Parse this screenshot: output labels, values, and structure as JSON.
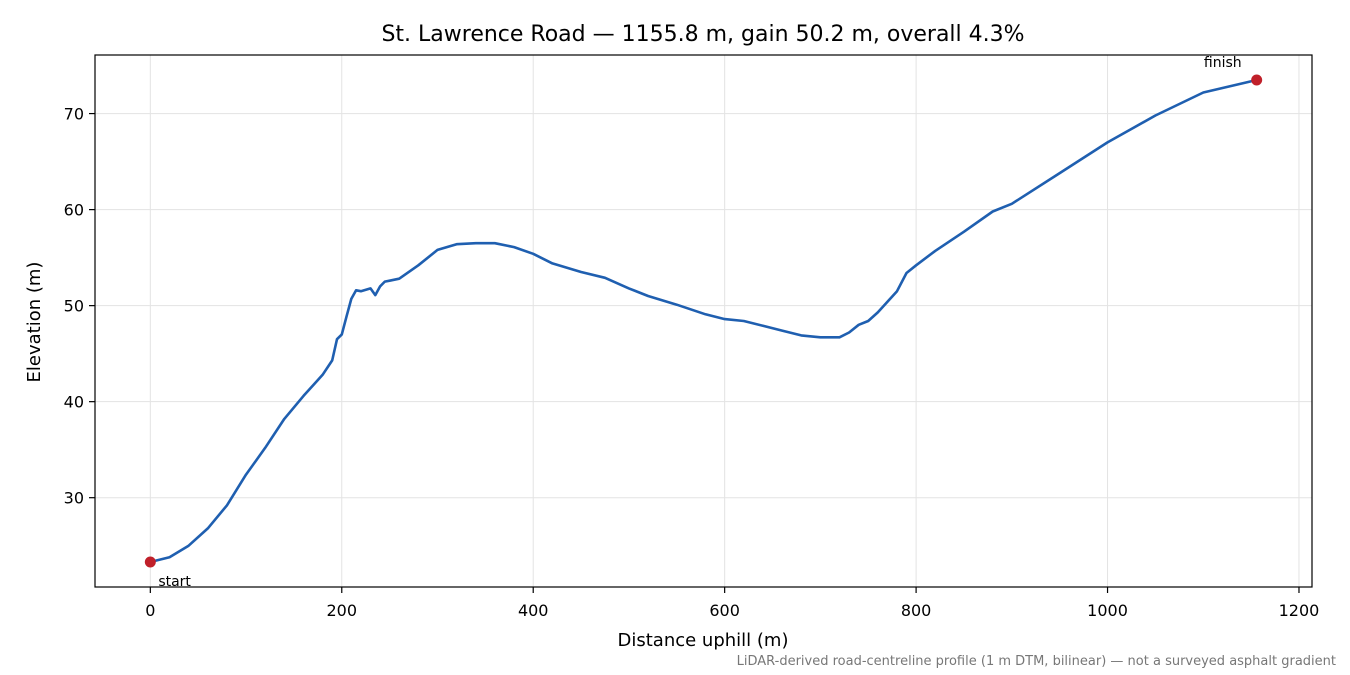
{
  "chart_data": {
    "type": "line",
    "title": "St. Lawrence Road — 1155.8 m, gain 50.2 m, overall 4.3%",
    "xlabel": "Distance uphill (m)",
    "ylabel": "Elevation (m)",
    "xlim": [
      -57.8,
      1213.6
    ],
    "ylim": [
      20.7,
      76.1
    ],
    "xticks": [
      0,
      200,
      400,
      600,
      800,
      1000,
      1200
    ],
    "yticks": [
      30,
      40,
      50,
      60,
      70
    ],
    "grid": true,
    "note": "LiDAR-derived road-centreline profile (1 m DTM, bilinear) — not a surveyed asphalt gradient",
    "series": [
      {
        "color": "#1f5fb0",
        "x": [
          0,
          20,
          40,
          60,
          80,
          100,
          110,
          120,
          140,
          160,
          180,
          190,
          195,
          200,
          205,
          210,
          215,
          220,
          230,
          235,
          240,
          245,
          250,
          260,
          280,
          300,
          320,
          340,
          360,
          380,
          400,
          420,
          450,
          475,
          500,
          520,
          550,
          580,
          600,
          620,
          640,
          660,
          680,
          700,
          720,
          730,
          740,
          750,
          760,
          780,
          790,
          800,
          820,
          850,
          880,
          900,
          950,
          1000,
          1050,
          1100,
          1155.8
        ],
        "y": [
          23.3,
          23.8,
          25.0,
          26.8,
          29.2,
          32.4,
          33.8,
          35.2,
          38.2,
          40.6,
          42.8,
          44.3,
          46.5,
          47.0,
          48.9,
          50.7,
          51.6,
          51.5,
          51.8,
          51.1,
          52.0,
          52.5,
          52.6,
          52.8,
          54.2,
          55.8,
          56.4,
          56.5,
          56.5,
          56.1,
          55.4,
          54.4,
          53.5,
          52.9,
          51.8,
          51.0,
          50.1,
          49.1,
          48.6,
          48.4,
          47.9,
          47.4,
          46.9,
          46.7,
          46.7,
          47.2,
          48.0,
          48.4,
          49.3,
          51.5,
          53.4,
          54.2,
          55.7,
          57.7,
          59.8,
          60.6,
          63.8,
          67.0,
          69.8,
          72.2,
          73.5
        ]
      }
    ],
    "points": [
      {
        "label": "start",
        "x": 0,
        "y": 23.3,
        "color": "#c0202a"
      },
      {
        "label": "finish",
        "x": 1155.8,
        "y": 73.5,
        "color": "#c0202a"
      }
    ]
  }
}
